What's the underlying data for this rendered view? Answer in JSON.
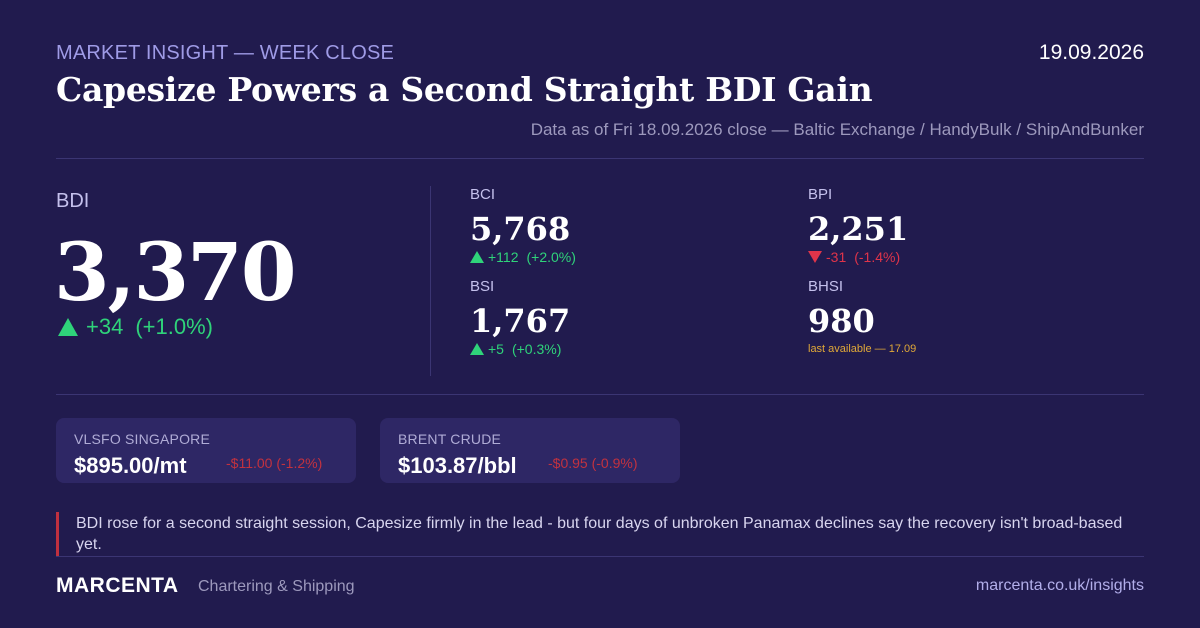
{
  "header": {
    "kicker": "MARKET INSIGHT — WEEK CLOSE",
    "date": "19.09.2026",
    "title": "Capesize Powers a Second Straight BDI Gain",
    "source": "Data as of Fri 18.09.2026 close — Baltic Exchange / HandyBulk / ShipAndBunker"
  },
  "bdi": {
    "label": "BDI",
    "value": "3,370",
    "change": "+34",
    "change_pct": "(+1.0%)",
    "direction": "up"
  },
  "indices": [
    {
      "label": "BCI",
      "value": "5,768",
      "change": "+112",
      "change_pct": "(+2.0%)",
      "direction": "up"
    },
    {
      "label": "BPI",
      "value": "2,251",
      "change": "-31",
      "change_pct": "(-1.4%)",
      "direction": "down"
    },
    {
      "label": "BSI",
      "value": "1,767",
      "change": "+5",
      "change_pct": "(+0.3%)",
      "direction": "up"
    },
    {
      "label": "BHSI",
      "value": "980",
      "note": "last available — 17.09"
    }
  ],
  "cards": [
    {
      "label": "VLSFO SINGAPORE",
      "value": "$895.00/mt",
      "change": "-$11.00 (-1.2%)",
      "direction": "down"
    },
    {
      "label": "BRENT CRUDE",
      "value": "$103.87/bbl",
      "change": "-$0.95 (-0.9%)",
      "direction": "down"
    }
  ],
  "commentary": "BDI rose for a second straight session, Capesize firmly in the lead - but four days of unbroken Panamax declines say the recovery isn't broad-based yet.",
  "footer": {
    "brand": "MARCENTA",
    "tagline": "Chartering & Shipping",
    "url": "marcenta.co.uk/insights"
  },
  "colors": {
    "background": "#211b4e",
    "up": "#2fd37a",
    "down": "#e0344a",
    "accent": "#9f9be6",
    "note": "#e0a838"
  },
  "icons": {
    "up": "triangle-up-icon",
    "down": "triangle-down-icon"
  }
}
